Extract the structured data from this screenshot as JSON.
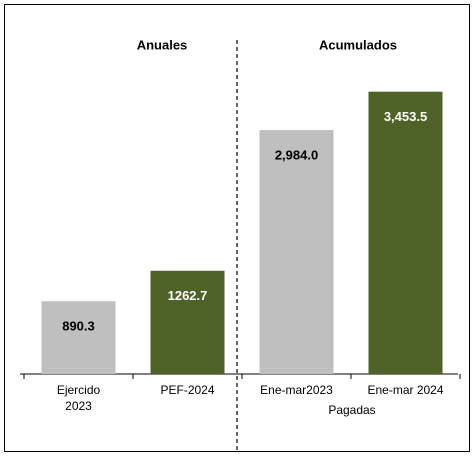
{
  "chart_data": {
    "type": "bar",
    "categories": [
      "Ejercido\n2023",
      "PEF-2024",
      "Ene-mar2023",
      "Ene-mar 2024"
    ],
    "values": [
      890.3,
      1262.7,
      2984.0,
      3453.5
    ],
    "value_labels": [
      "890.3",
      "1262.7",
      "2,984.0",
      "3,453.5"
    ],
    "colors": [
      "#bfbfbf",
      "#4f6228",
      "#bfbfbf",
      "#4f6228"
    ],
    "group_labels": [
      "Anuales",
      "Acumulados"
    ],
    "annotation": "Pagadas",
    "ylim": [
      0,
      4000
    ]
  }
}
